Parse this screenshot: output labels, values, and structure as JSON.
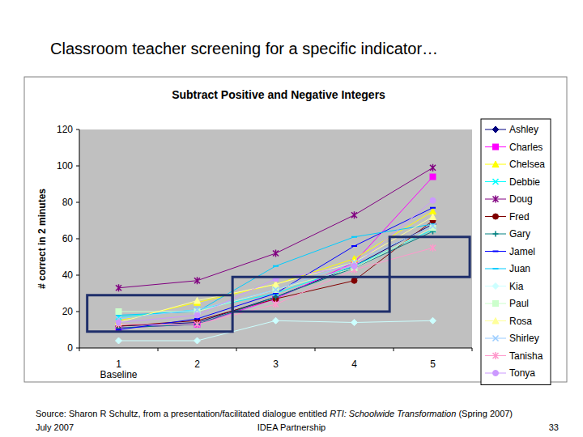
{
  "header": {
    "title": "Classroom teacher screening for a specific indicator…"
  },
  "chart_data": {
    "type": "line",
    "title": "Subtract Positive and Negative Integers",
    "y_label": "# correct in 2 minutes",
    "categories": [
      "1",
      "2",
      "3",
      "4",
      "5"
    ],
    "ylim": [
      0,
      120
    ],
    "yticks": [
      0,
      20,
      40,
      60,
      80,
      100,
      120
    ],
    "grid": false,
    "legend": "right",
    "annotations": [
      {
        "text": "Baseline",
        "x": 1
      }
    ],
    "boxes": [
      {
        "x": [
          0.6,
          2.45
        ],
        "y": [
          9,
          29
        ]
      },
      {
        "x": [
          2.45,
          4.45
        ],
        "y": [
          20,
          39
        ]
      },
      {
        "x": [
          4.45,
          5.47
        ],
        "y": [
          39,
          61
        ]
      }
    ],
    "series": [
      {
        "name": "Ashley",
        "color": "#000080",
        "marker": "diamond",
        "values": [
          12,
          14,
          28,
          45,
          68
        ]
      },
      {
        "name": "Charles",
        "color": "#ff00ff",
        "marker": "square",
        "values": [
          11,
          13,
          27,
          47,
          94
        ]
      },
      {
        "name": "Chelsea",
        "color": "#ffff00",
        "marker": "triangle",
        "values": [
          15,
          25,
          35,
          49,
          75
        ]
      },
      {
        "name": "Debbie",
        "color": "#00ffff",
        "marker": "x",
        "values": [
          17,
          21,
          30,
          45,
          65
        ]
      },
      {
        "name": "Doug",
        "color": "#800080",
        "marker": "star",
        "values": [
          33,
          37,
          52,
          73,
          99
        ]
      },
      {
        "name": "Fred",
        "color": "#800000",
        "marker": "circle",
        "values": [
          12,
          15,
          27,
          37,
          70
        ]
      },
      {
        "name": "Gary",
        "color": "#008080",
        "marker": "plus",
        "values": [
          11,
          13,
          28,
          44,
          64
        ]
      },
      {
        "name": "Jamel",
        "color": "#0000ff",
        "marker": "dash",
        "values": [
          10,
          16,
          30,
          56,
          77
        ]
      },
      {
        "name": "Juan",
        "color": "#00ccff",
        "marker": "dash",
        "values": [
          18,
          20,
          45,
          61,
          68
        ]
      },
      {
        "name": "Kia",
        "color": "#ccffff",
        "marker": "diamond",
        "values": [
          4,
          4,
          15,
          14,
          15
        ]
      },
      {
        "name": "Paul",
        "color": "#ccffcc",
        "marker": "square",
        "values": [
          20,
          20,
          32,
          44,
          66
        ]
      },
      {
        "name": "Rosa",
        "color": "#ffff99",
        "marker": "triangle",
        "values": [
          14,
          26,
          35,
          47,
          72
        ]
      },
      {
        "name": "Shirley",
        "color": "#99ccff",
        "marker": "x",
        "values": [
          16,
          21,
          32,
          47,
          67
        ]
      },
      {
        "name": "Tanisha",
        "color": "#ff99cc",
        "marker": "star",
        "values": [
          13,
          13,
          24,
          43,
          55
        ]
      },
      {
        "name": "Tonya",
        "color": "#cc99ff",
        "marker": "circle",
        "values": [
          14,
          18,
          38,
          45,
          81
        ]
      }
    ]
  },
  "footer": {
    "source_prefix": "Source: Sharon R Schultz, from a presentation/facilitated dialogue entitled ",
    "source_title": "RTI: Schoolwide Transformation",
    "source_suffix": " (Spring 2007)",
    "date": "July 2007",
    "organization": "IDEA Partnership",
    "page": "33"
  }
}
